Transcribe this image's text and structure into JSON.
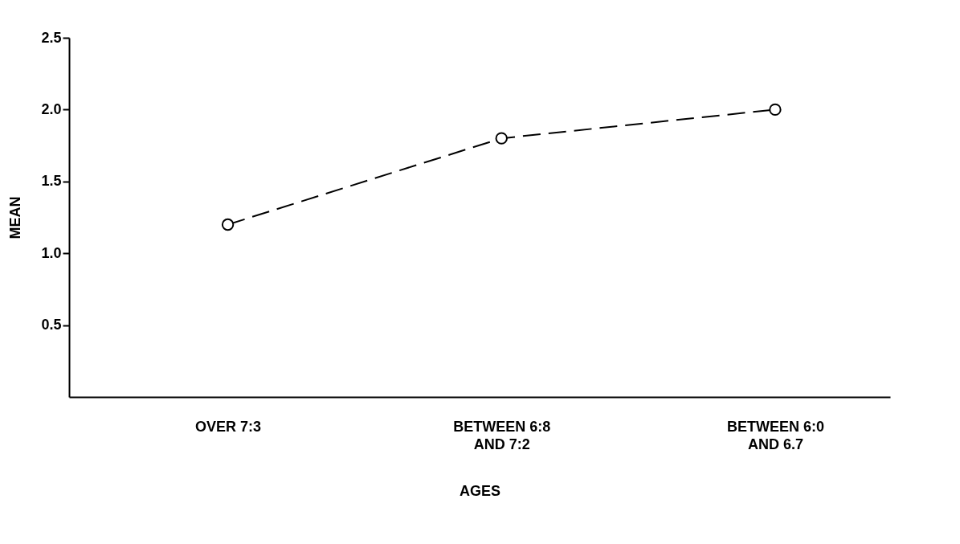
{
  "chart_data": {
    "type": "line",
    "xlabel": "AGES",
    "ylabel": "MEAN",
    "categories": [
      "OVER 7:3",
      "BETWEEN 6:8\nAND 7:2",
      "BETWEEN 6:0\nAND 6.7"
    ],
    "series": [
      {
        "color": "#000000",
        "values": [
          1.2,
          1.8,
          2.0
        ]
      }
    ],
    "ylim": [
      0,
      2.5
    ],
    "yticks": [
      0.5,
      {
        "value": 1,
        "label": "1.0"
      },
      1.5,
      {
        "value": 2,
        "label": "2.0"
      },
      2.5
    ],
    "marker": "circle",
    "line_style": "dashed",
    "grid": false,
    "legend": false
  }
}
